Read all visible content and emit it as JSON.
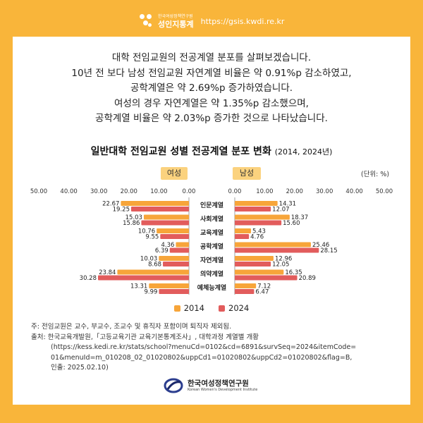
{
  "header": {
    "org_small": "한국여성정책연구원",
    "brand": "성인지통계",
    "url": "https://gsis.kwdi.re.kr"
  },
  "intro": [
    "대학 전임교원의 전공계열 분포를 살펴보겠습니다.",
    "10년 전 보다 남성 전임교원 자연계열 비율은 약 0.91%p 감소하였고,",
    "공학계열은 약 2.69%p 증가하였습니다.",
    "여성의 경우 자연계열은 약 1.35%p 감소했으며,",
    "공학계열 비율은 약 2.03%p 증가한 것으로 나타났습니다."
  ],
  "chart_data": {
    "type": "bar",
    "orientation": "horizontal",
    "title": "일반대학 전임교원 성별 전공계열 분포 변화",
    "title_years": "(2014, 2024년)",
    "unit": "(단위: %)",
    "panel_labels": {
      "female": "여성",
      "male": "남성"
    },
    "categories": [
      "인문계열",
      "사회계열",
      "교육계열",
      "공학계열",
      "자연계열",
      "의약계열",
      "예체능계열"
    ],
    "xlim": [
      0,
      50
    ],
    "female_ticks": [
      "50.00",
      "40.00",
      "30.00",
      "20.00",
      "10.00",
      "0.00"
    ],
    "male_ticks": [
      "0.00",
      "10.00",
      "20.00",
      "30.00",
      "40.00",
      "50.00"
    ],
    "series": [
      {
        "name": "2014",
        "color": "#f7a53a",
        "female": [
          22.67,
          15.03,
          10.76,
          4.36,
          10.03,
          23.84,
          13.31
        ],
        "male": [
          14.31,
          18.37,
          5.43,
          25.46,
          12.96,
          16.35,
          7.12
        ]
      },
      {
        "name": "2024",
        "color": "#e25c5c",
        "female": [
          19.25,
          15.86,
          9.55,
          6.39,
          8.68,
          30.28,
          9.99
        ],
        "male": [
          12.07,
          15.6,
          4.76,
          28.15,
          12.05,
          20.89,
          6.47
        ]
      }
    ],
    "legend_position": "bottom-center",
    "grid": false
  },
  "notes": [
    "주: 전임교원은 교수, 부교수, 조교수 및 휴직자 포함이며 퇴직자 제외됨.",
    "출처: 한국교육개발원,「고등교육기관 교육기본통계조사」, 대학과정 계열별 개황",
    "(https://kess.kedi.re.kr/stats/school?menuCd=0102&cd=6891&survSeq=2024&itemCode=",
    "01&menuId=m_010208_02_01020802&uppCd1=01020802&uppCd2=01020802&flag=B,",
    "인출: 2025.02.10)"
  ],
  "footer": {
    "org_ko": "한국여성정책연구원",
    "org_en": "Korean Women's Development Institute"
  },
  "colors": {
    "background": "#f9b53a",
    "card": "#ffffff",
    "tag": "#fbd27e"
  },
  "icons": {
    "brand_logo": "dots-logo-icon",
    "org_logo": "kwdi-swirl-icon"
  }
}
